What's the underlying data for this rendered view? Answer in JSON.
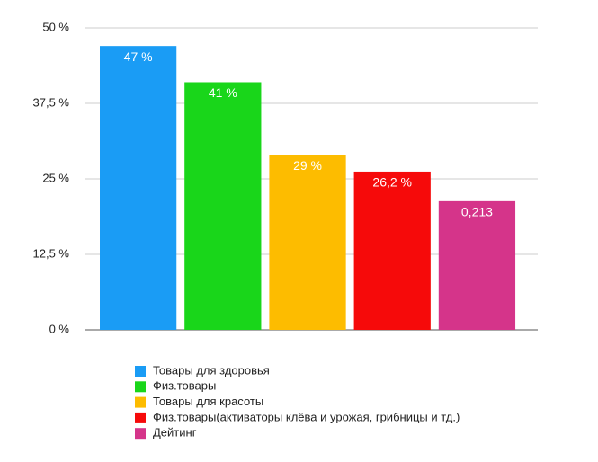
{
  "chart_data": {
    "type": "bar",
    "categories": [
      null
    ],
    "series": [
      {
        "name": "Товары для здоровья",
        "color": "#1a9cf5",
        "values": [
          47
        ],
        "value_labels": [
          "47 %"
        ]
      },
      {
        "name": "Физ.товары",
        "color": "#19d61a",
        "values": [
          41
        ],
        "value_labels": [
          "41 %"
        ]
      },
      {
        "name": "Товары для красоты",
        "color": "#fdbc00",
        "values": [
          29
        ],
        "value_labels": [
          "29 %"
        ]
      },
      {
        "name": "Физ.товары(активаторы клёва и урожая, грибницы и тд.)",
        "color": "#f60a0a",
        "values": [
          26.2
        ],
        "value_labels": [
          "26,2 %"
        ]
      },
      {
        "name": "Дейтинг",
        "color": "#d5348a",
        "values": [
          21.3
        ],
        "value_labels": [
          "0,213"
        ]
      }
    ],
    "ylim": [
      0,
      50
    ],
    "yticks": [
      {
        "value": 0,
        "label": "0 %"
      },
      {
        "value": 12.5,
        "label": "12,5 %"
      },
      {
        "value": 25,
        "label": "25 %"
      },
      {
        "value": 37.5,
        "label": "37,5 %"
      },
      {
        "value": 50,
        "label": "50 %"
      }
    ],
    "grid": true
  }
}
